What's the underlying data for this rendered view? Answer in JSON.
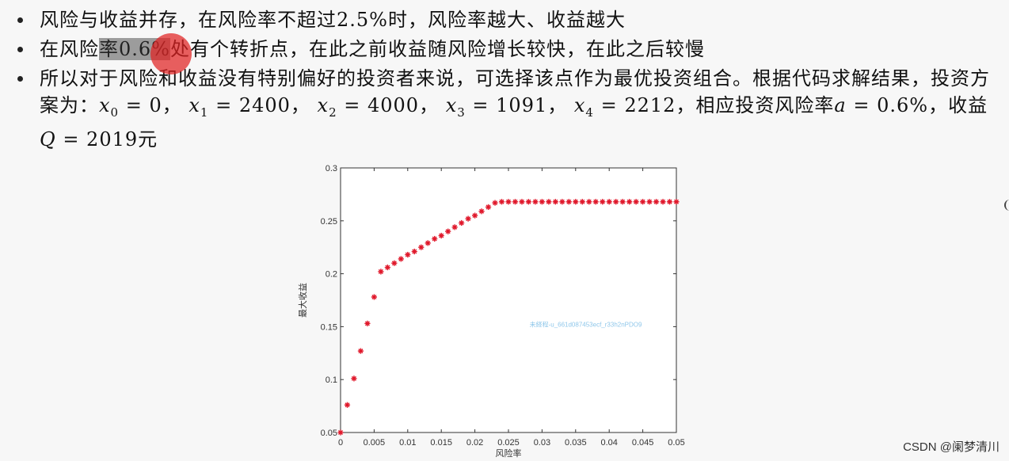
{
  "bullets": [
    {
      "segments": [
        {
          "t": "风险与收益并存，在风险率不超过2.5%时，风险率越大、收益越大"
        }
      ]
    },
    {
      "segments": [
        {
          "t": "在风险"
        },
        {
          "t": "率0.6%",
          "hl": true
        },
        {
          "t": "处有个转折点，在此之前收益随风险增长较快，在此之后较慢"
        }
      ]
    },
    {
      "segments": [
        {
          "t": "所以对于风险和收益没有特别偏好的投资者来说，可选择该点作为最优投资组合。根据代码求解结果，投资方案为："
        },
        {
          "t": "x",
          "math": true
        },
        {
          "t": "0",
          "sub": true
        },
        {
          "t": " = 0， "
        },
        {
          "t": "x",
          "math": true
        },
        {
          "t": "1",
          "sub": true
        },
        {
          "t": " = 2400， "
        },
        {
          "t": "x",
          "math": true
        },
        {
          "t": "2",
          "sub": true
        },
        {
          "t": " = 4000， "
        },
        {
          "t": "x",
          "math": true
        },
        {
          "t": "3",
          "sub": true
        },
        {
          "t": " = 1091， "
        },
        {
          "t": "x",
          "math": true
        },
        {
          "t": "4",
          "sub": true
        },
        {
          "t": " = 2212，相应投资风险率"
        },
        {
          "t": "a",
          "math": true
        },
        {
          "t": " = 0.6%，收益"
        },
        {
          "t": "Q",
          "math": true
        },
        {
          "t": " = 2019元"
        }
      ]
    }
  ],
  "watermark": "CSDN @阑梦清川",
  "chart_data": {
    "type": "scatter",
    "marker": "*",
    "color": "#e0182b",
    "xlabel": "风险率",
    "ylabel": "最大收益",
    "xlim": [
      0,
      0.05
    ],
    "ylim": [
      0.05,
      0.3
    ],
    "xticks": [
      0,
      0.005,
      0.01,
      0.015,
      0.02,
      0.025,
      0.03,
      0.035,
      0.04,
      0.045,
      0.05
    ],
    "xtick_labels": [
      "0",
      "0.005",
      "0.01",
      "0.015",
      "0.02",
      "0.025",
      "0.03",
      "0.035",
      "0.04",
      "0.045",
      "0.05"
    ],
    "yticks": [
      0.05,
      0.1,
      0.15,
      0.2,
      0.25,
      0.3
    ],
    "ytick_labels": [
      "0.05",
      "0.1",
      "0.15",
      "0.2",
      "0.25",
      "0.3"
    ],
    "grid": false,
    "overlay_text": "未経程-u_661d087453ecf_r33h2nPDO9",
    "points": [
      [
        0.0,
        0.05
      ],
      [
        0.001,
        0.076
      ],
      [
        0.002,
        0.101
      ],
      [
        0.003,
        0.127
      ],
      [
        0.004,
        0.153
      ],
      [
        0.005,
        0.178
      ],
      [
        0.006,
        0.202
      ],
      [
        0.007,
        0.206
      ],
      [
        0.008,
        0.21
      ],
      [
        0.009,
        0.214
      ],
      [
        0.01,
        0.218
      ],
      [
        0.011,
        0.221
      ],
      [
        0.012,
        0.225
      ],
      [
        0.013,
        0.229
      ],
      [
        0.014,
        0.233
      ],
      [
        0.015,
        0.236
      ],
      [
        0.016,
        0.24
      ],
      [
        0.017,
        0.244
      ],
      [
        0.018,
        0.248
      ],
      [
        0.019,
        0.252
      ],
      [
        0.02,
        0.255
      ],
      [
        0.021,
        0.259
      ],
      [
        0.022,
        0.263
      ],
      [
        0.023,
        0.267
      ],
      [
        0.024,
        0.268
      ],
      [
        0.025,
        0.268
      ],
      [
        0.026,
        0.268
      ],
      [
        0.027,
        0.268
      ],
      [
        0.028,
        0.268
      ],
      [
        0.029,
        0.268
      ],
      [
        0.03,
        0.268
      ],
      [
        0.031,
        0.268
      ],
      [
        0.032,
        0.268
      ],
      [
        0.033,
        0.268
      ],
      [
        0.034,
        0.268
      ],
      [
        0.035,
        0.268
      ],
      [
        0.036,
        0.268
      ],
      [
        0.037,
        0.268
      ],
      [
        0.038,
        0.268
      ],
      [
        0.039,
        0.268
      ],
      [
        0.04,
        0.268
      ],
      [
        0.041,
        0.268
      ],
      [
        0.042,
        0.268
      ],
      [
        0.043,
        0.268
      ],
      [
        0.044,
        0.268
      ],
      [
        0.045,
        0.268
      ],
      [
        0.046,
        0.268
      ],
      [
        0.047,
        0.268
      ],
      [
        0.048,
        0.268
      ],
      [
        0.049,
        0.268
      ],
      [
        0.05,
        0.268
      ]
    ]
  }
}
